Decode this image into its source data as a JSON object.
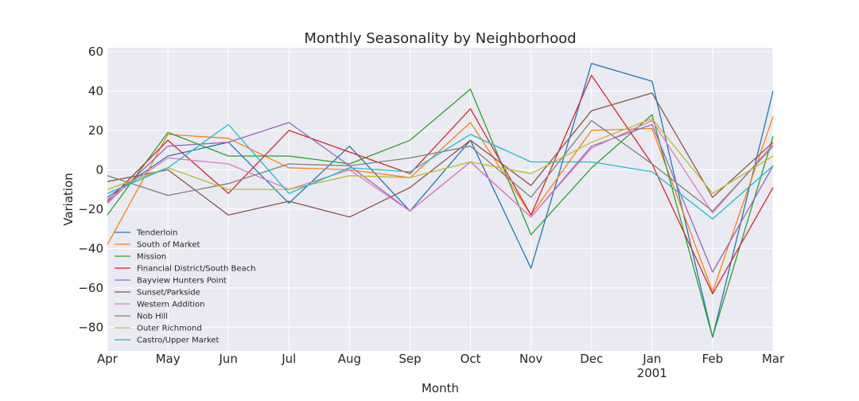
{
  "chart_data": {
    "type": "line",
    "title": "Monthly Seasonality by Neighborhood",
    "xlabel": "Month",
    "ylabel": "Variation",
    "categories": [
      "Apr",
      "May",
      "Jun",
      "Jul",
      "Aug",
      "Sep",
      "Oct",
      "Nov",
      "Dec",
      "Jan",
      "Feb",
      "Mar"
    ],
    "year_label": "2001",
    "year_label_under": "Jan",
    "ylim": [
      -92,
      62
    ],
    "yticks": [
      60,
      40,
      20,
      0,
      -20,
      -40,
      -60,
      -80
    ],
    "ytick_labels": [
      "60",
      "40",
      "20",
      "0",
      "−20",
      "−40",
      "−60",
      "−80"
    ],
    "grid": true,
    "legend_position": "lower-left",
    "series": [
      {
        "name": "Tenderloin",
        "color": "#1f77b4",
        "values": [
          -14,
          7,
          14,
          -17,
          12,
          -21,
          15,
          -50,
          54,
          45,
          -85,
          40
        ]
      },
      {
        "name": "South of Market",
        "color": "#ff7f0e",
        "values": [
          -38,
          18,
          16,
          1,
          0,
          -4,
          24,
          -23,
          20,
          21,
          -62,
          27
        ]
      },
      {
        "name": "Mission",
        "color": "#2ca02c",
        "values": [
          -23,
          19,
          7,
          7,
          3,
          15,
          41,
          -33,
          1,
          28,
          -85,
          17
        ]
      },
      {
        "name": "Financial District/South Beach",
        "color": "#d62728",
        "values": [
          -16,
          15,
          -12,
          20,
          9,
          -2,
          31,
          -23,
          48,
          3,
          -63,
          -9
        ]
      },
      {
        "name": "Bayview Hunters Point",
        "color": "#9467bd",
        "values": [
          -17,
          12,
          14,
          24,
          2,
          -21,
          4,
          -24,
          12,
          23,
          -52,
          2
        ]
      },
      {
        "name": "Sunset/Parkside",
        "color": "#8c564b",
        "values": [
          -6,
          0,
          -23,
          -16,
          -24,
          -9,
          15,
          -8,
          30,
          39,
          -14,
          14
        ]
      },
      {
        "name": "Western Addition",
        "color": "#e377c2",
        "values": [
          -15,
          6,
          3,
          -10,
          0,
          -21,
          4,
          -24,
          11,
          25,
          -22,
          13
        ]
      },
      {
        "name": "Nob Hill",
        "color": "#7f7f7f",
        "values": [
          -3,
          -13,
          -7,
          3,
          2,
          6,
          12,
          -14,
          25,
          3,
          -21,
          12
        ]
      },
      {
        "name": "Outer Richmond",
        "color": "#bcbd22",
        "values": [
          -10,
          1,
          -10,
          -10,
          -3,
          -4,
          4,
          -2,
          14,
          26,
          -12,
          7
        ]
      },
      {
        "name": "Castro/Upper Market",
        "color": "#17becf",
        "values": [
          -12,
          1,
          23,
          -12,
          1,
          -1,
          18,
          4,
          4,
          -1,
          -25,
          2
        ]
      }
    ]
  }
}
